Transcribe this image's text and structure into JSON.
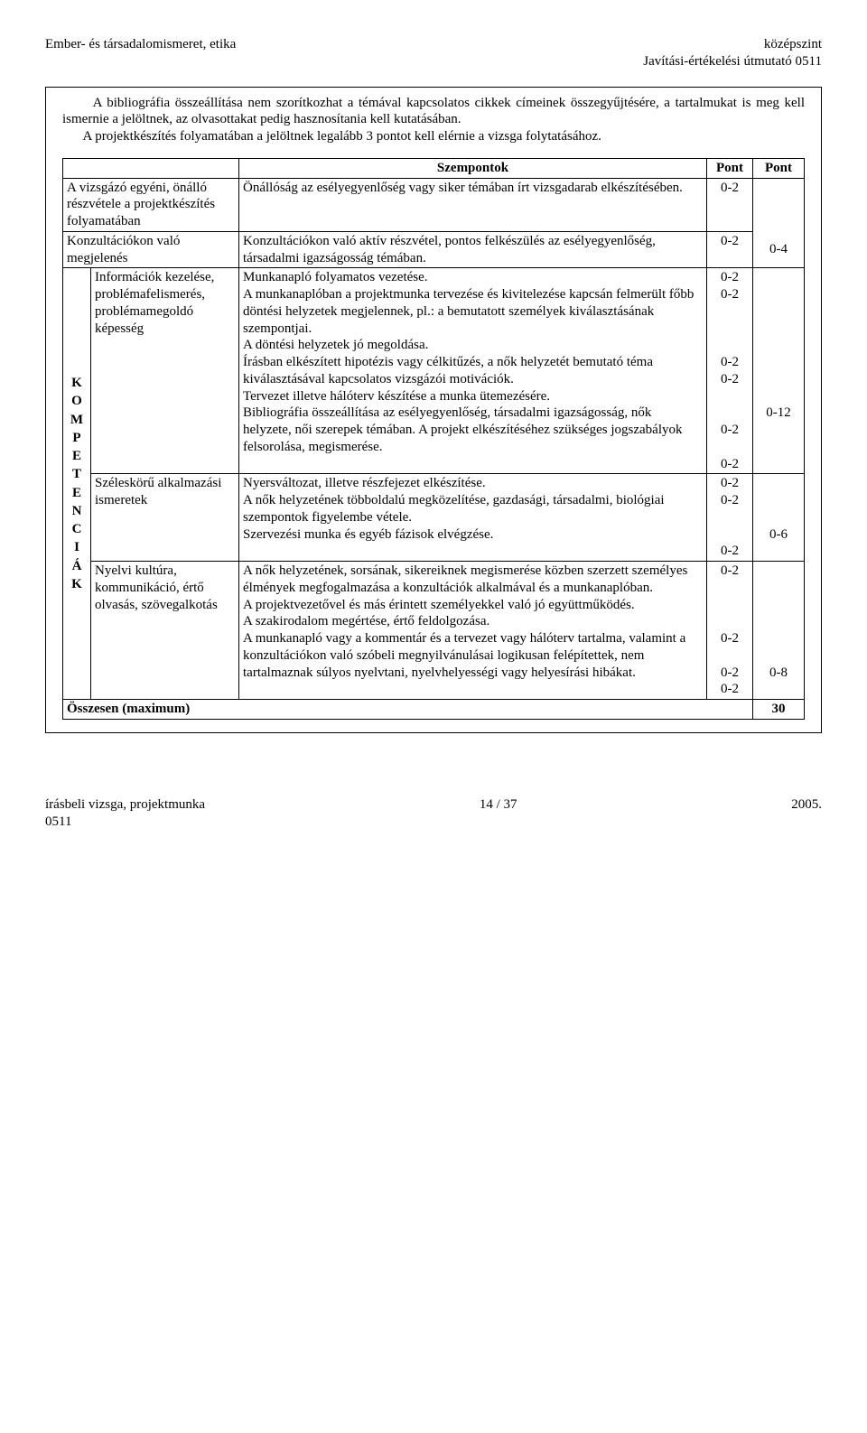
{
  "header": {
    "left": "Ember- és társadalomismeret, etika",
    "right1": "középszint",
    "right2": "Javítási-értékelési útmutató 0511"
  },
  "intro": {
    "p1": "A bibliográfia összeállítása nem szorítkozhat a témával kapcsolatos cikkek címeinek összegyűjtésére, a tartalmukat is meg kell ismernie a jelöltnek, az olvasottakat pedig hasznosítania kell kutatásában.",
    "p2": "A projektkészítés folyamatában a jelöltnek legalább 3 pontot kell elérnie a vizsga folytatásához."
  },
  "table": {
    "head": {
      "szempontok": "Szempontok",
      "pont1": "Pont",
      "pont2": "Pont"
    },
    "r1": {
      "left": "A vizsgázó egyéni, önálló részvétele a projektkészítés folyamatában",
      "mid": "Önállóság az esélyegyenlőség vagy siker témában írt vizsgadarab elkészítésében.",
      "p": "0-2"
    },
    "r2": {
      "left": "Konzultációkon való megjelenés",
      "mid": "Konzultációkon való aktív részvétel, pontos felkészülés az esélyegyenlőség, társadalmi igazságosság témában.",
      "p": "0-2",
      "p2": "0-4"
    },
    "komp": "K\nO\nM\nP\nE\nT\nE\nN\nC\nI\nÁ\nK",
    "r3": {
      "left": "Információk kezelése, problémafelismerés, problémamegoldó képesség",
      "l1": "Munkanapló folyamatos vezetése.",
      "l2": "A munkanaplóban a projektmunka tervezése és kivitelezése kapcsán felmerült főbb döntési helyzetek megjelennek, pl.: a bemutatott személyek kiválasztásának szempontjai.",
      "l3": "A döntési helyzetek jó megoldása.",
      "l4": "Írásban elkészített hipotézis vagy célkitűzés, a nők helyzetét bemutató téma kiválasztásával kapcsolatos vizsgázói motivációk.",
      "l5": "Tervezet illetve hálóterv készítése a munka ütemezésére.",
      "l6": "Bibliográfia összeállítása az esélyegyenlőség, társadalmi igazságosság, nők helyzete, női szerepek témában. A projekt elkészítéséhez szükséges jogszabályok felsorolása, megismerése.",
      "p1": "0-2",
      "p2": "0-2",
      "p3": "0-2",
      "p4": "0-2",
      "p5": "0-2",
      "p6": "0-2",
      "pp": "0-12"
    },
    "r4": {
      "left": "Széleskörű alkalmazási ismeretek",
      "l1": "Nyersváltozat, illetve részfejezet elkészítése.",
      "l2": "A nők helyzetének többoldalú megközelítése, gazdasági, társadalmi, biológiai szempontok figyelembe vétele.",
      "l3": "Szervezési munka és egyéb fázisok elvégzése.",
      "p1": "0-2",
      "p2": "0-2",
      "p3": "0-2",
      "pp": "0-6"
    },
    "r5": {
      "left": "Nyelvi kultúra, kommunikáció, értő olvasás, szövegalkotás",
      "l1": "A nők helyzetének, sorsának, sikereiknek megismerése közben szerzett személyes élmények megfogalmazása a konzultációk alkalmával és a munkanaplóban.",
      "l2": "A projektvezetővel és más érintett személyekkel való jó együttműködés.",
      "l3": "A szakirodalom megértése, értő feldolgozása.",
      "l4": "A munkanapló vagy a kommentár és a tervezet vagy hálóterv tartalma, valamint a konzultációkon való szóbeli megnyilvánulásai logikusan felépítettek, nem tartalmaznak súlyos nyelvtani, nyelvhelyességi vagy helyesírási hibákat.",
      "p1": "0-2",
      "p2": "0-2",
      "p3": "0-2",
      "p4": "0-2",
      "pp": "0-8"
    },
    "sum": {
      "label": "Összesen (maximum)",
      "val": "30"
    }
  },
  "footer": {
    "left": "írásbeli vizsga, projektmunka\n0511",
    "mid": "14 / 37",
    "right": "2005."
  }
}
